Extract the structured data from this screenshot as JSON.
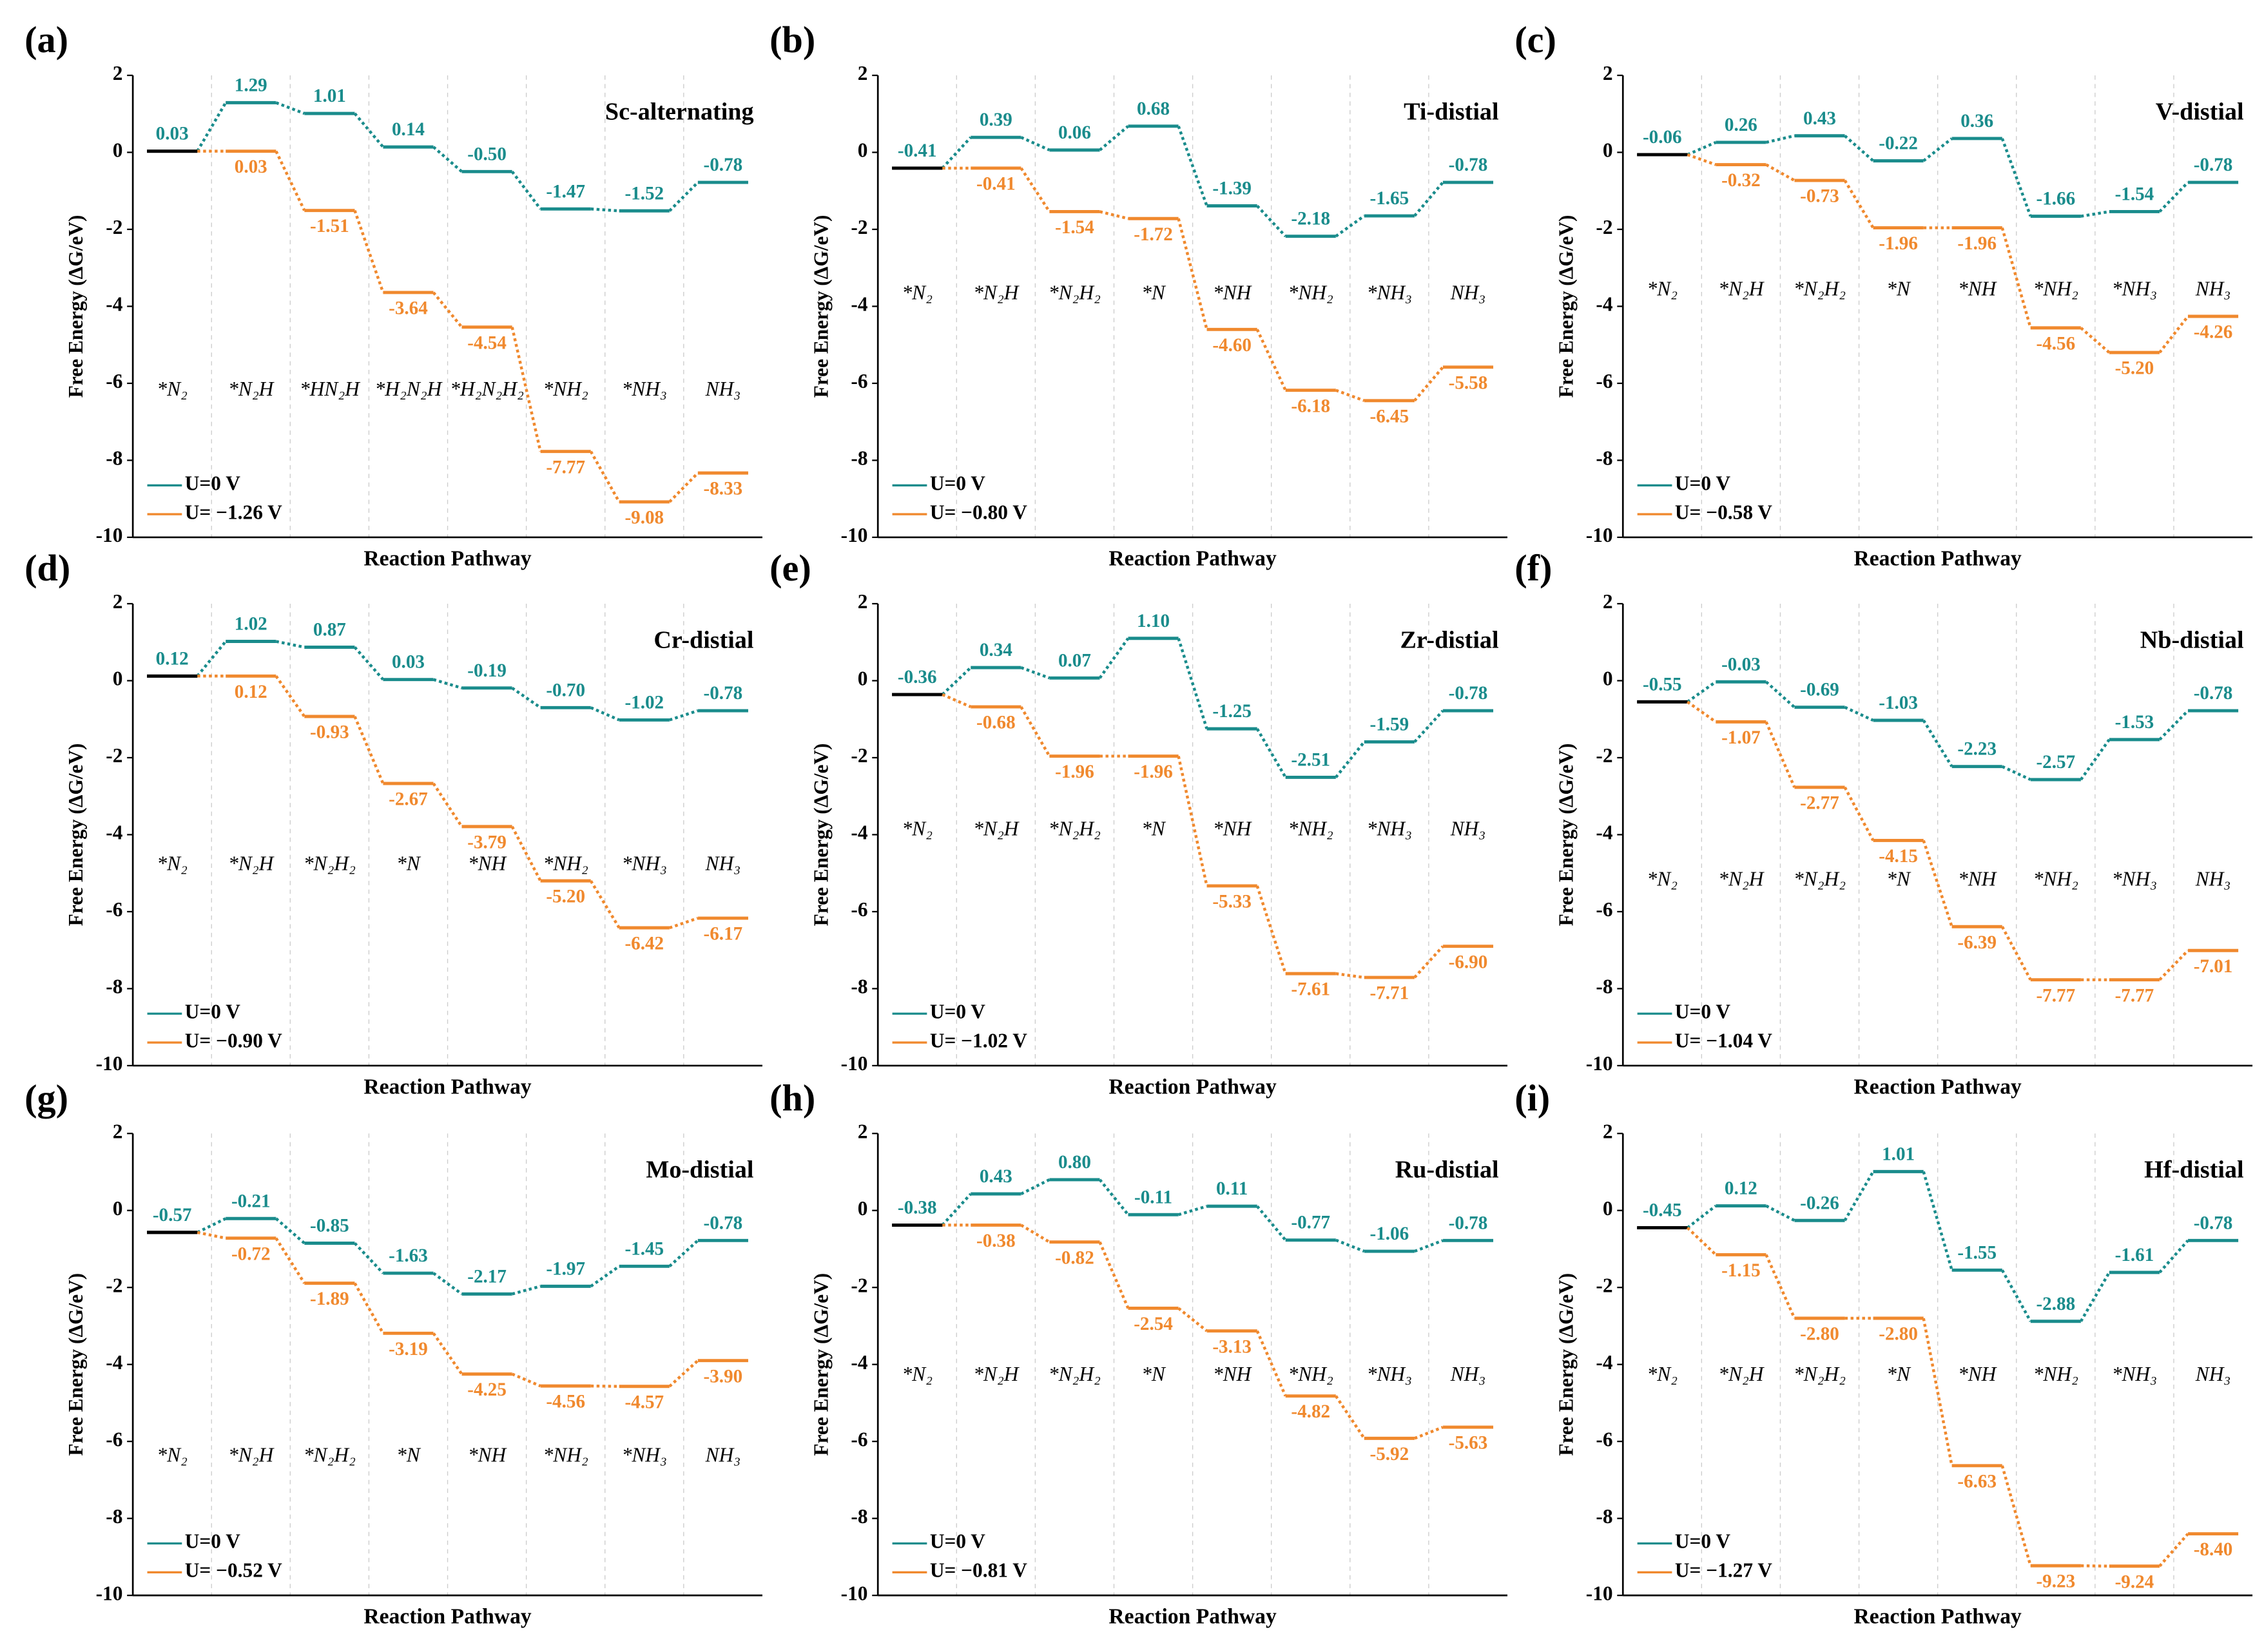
{
  "chart_data": [
    {
      "type": "step",
      "panel": "(a)",
      "title": "Sc-alternating",
      "xlabel": "Reaction Pathway",
      "ylabel": "Free Energy (ΔG/eV)",
      "ylim": [
        -10,
        2
      ],
      "yticks": [
        -10,
        -8,
        -6,
        -4,
        -2,
        0,
        2
      ],
      "categories": [
        "*N₂",
        "*N₂H",
        "*HN₂H",
        "*H₂N₂H",
        "*H₂N₂H₂",
        "*NH₂",
        "*NH₃",
        "NH₃"
      ],
      "series": [
        {
          "name": "U=0 V",
          "color": "#1a8c8c",
          "values": [
            0.03,
            1.29,
            1.01,
            0.14,
            -0.5,
            -1.47,
            -1.52,
            -0.78
          ],
          "value_labels": [
            "0.03",
            "1.29",
            "1.01",
            "0.14",
            "-0.50",
            "-1.47",
            "-1.52",
            "-0.78"
          ]
        },
        {
          "name": "U= −1.26 V",
          "color": "#f0892e",
          "values": [
            0.03,
            0.03,
            -1.51,
            -3.64,
            -4.54,
            -7.77,
            -9.08,
            -8.33
          ],
          "value_labels": [
            null,
            "0.03",
            "-1.51",
            "-3.64",
            "-4.54",
            "-7.77",
            "-9.08",
            "-8.33"
          ]
        }
      ]
    },
    {
      "type": "step",
      "panel": "(b)",
      "title": "Ti-distial",
      "xlabel": "Reaction Pathway",
      "ylabel": "Free Energy (ΔG/eV)",
      "ylim": [
        -10,
        2
      ],
      "yticks": [
        -10,
        -8,
        -6,
        -4,
        -2,
        0,
        2
      ],
      "categories": [
        "*N₂",
        "*N₂H",
        "*N₂H₂",
        "*N",
        "*NH",
        "*NH₂",
        "*NH₃",
        "NH₃"
      ],
      "series": [
        {
          "name": "U=0 V",
          "color": "#1a8c8c",
          "values": [
            -0.41,
            0.39,
            0.06,
            0.68,
            -1.39,
            -2.18,
            -1.65,
            -0.78
          ],
          "value_labels": [
            "-0.41",
            "0.39",
            "0.06",
            "0.68",
            "-1.39",
            "-2.18",
            "-1.65",
            "-0.78"
          ]
        },
        {
          "name": "U= −0.80 V",
          "color": "#f0892e",
          "values": [
            -0.41,
            -0.41,
            -1.54,
            -1.72,
            -4.6,
            -6.18,
            -6.45,
            -5.58
          ],
          "value_labels": [
            null,
            "-0.41",
            "-1.54",
            "-1.72",
            "-4.60",
            "-6.18",
            "-6.45",
            "-5.58"
          ]
        }
      ]
    },
    {
      "type": "step",
      "panel": "(c)",
      "title": "V-distial",
      "xlabel": "Reaction Pathway",
      "ylabel": "Free Energy (ΔG/eV)",
      "ylim": [
        -10,
        2
      ],
      "yticks": [
        -10,
        -8,
        -6,
        -4,
        -2,
        0,
        2
      ],
      "categories": [
        "*N₂",
        "*N₂H",
        "*N₂H₂",
        "*N",
        "*NH",
        "*NH₂",
        "*NH₃",
        "NH₃"
      ],
      "series": [
        {
          "name": "U=0 V",
          "color": "#1a8c8c",
          "values": [
            -0.06,
            0.26,
            0.43,
            -0.22,
            0.36,
            -1.66,
            -1.54,
            -0.78
          ],
          "value_labels": [
            "-0.06",
            "0.26",
            "0.43",
            "-0.22",
            "0.36",
            "-1.66",
            "-1.54",
            "-0.78"
          ]
        },
        {
          "name": "U= −0.58 V",
          "color": "#f0892e",
          "values": [
            -0.06,
            -0.32,
            -0.73,
            -1.96,
            -1.96,
            -4.56,
            -5.2,
            -4.26
          ],
          "value_labels": [
            null,
            "-0.32",
            "-0.73",
            "-1.96",
            "-1.96",
            "-4.56",
            "-5.20",
            "-4.26"
          ]
        }
      ]
    },
    {
      "type": "step",
      "panel": "(d)",
      "title": "Cr-distial",
      "xlabel": "Reaction Pathway",
      "ylabel": "Free Energy (ΔG/eV)",
      "ylim": [
        -10,
        2
      ],
      "yticks": [
        -10,
        -8,
        -6,
        -4,
        -2,
        0,
        2
      ],
      "categories": [
        "*N₂",
        "*N₂H",
        "*N₂H₂",
        "*N",
        "*NH",
        "*NH₂",
        "*NH₃",
        "NH₃"
      ],
      "series": [
        {
          "name": "U=0 V",
          "color": "#1a8c8c",
          "values": [
            0.12,
            1.02,
            0.87,
            0.03,
            -0.19,
            -0.7,
            -1.02,
            -0.78
          ],
          "value_labels": [
            "0.12",
            "1.02",
            "0.87",
            "0.03",
            "-0.19",
            "-0.70",
            "-1.02",
            "-0.78"
          ]
        },
        {
          "name": "U= −0.90 V",
          "color": "#f0892e",
          "values": [
            0.12,
            0.12,
            -0.93,
            -2.67,
            -3.79,
            -5.2,
            -6.42,
            -6.17
          ],
          "value_labels": [
            null,
            "0.12",
            "-0.93",
            "-2.67",
            "-3.79",
            "-5.20",
            "-6.42",
            "-6.17"
          ]
        }
      ]
    },
    {
      "type": "step",
      "panel": "(e)",
      "title": "Zr-distial",
      "xlabel": "Reaction Pathway",
      "ylabel": "Free Energy (ΔG/eV)",
      "ylim": [
        -10,
        2
      ],
      "yticks": [
        -10,
        -8,
        -6,
        -4,
        -2,
        0,
        2
      ],
      "categories": [
        "*N₂",
        "*N₂H",
        "*N₂H₂",
        "*N",
        "*NH",
        "*NH₂",
        "*NH₃",
        "NH₃"
      ],
      "series": [
        {
          "name": "U=0 V",
          "color": "#1a8c8c",
          "values": [
            -0.36,
            0.34,
            0.07,
            1.1,
            -1.25,
            -2.51,
            -1.59,
            -0.78
          ],
          "value_labels": [
            "-0.36",
            "0.34",
            "0.07",
            "1.10",
            "-1.25",
            "-2.51",
            "-1.59",
            "-0.78"
          ]
        },
        {
          "name": "U= −1.02 V",
          "color": "#f0892e",
          "values": [
            -0.36,
            -0.68,
            -1.96,
            -1.96,
            -5.33,
            -7.61,
            -7.71,
            -6.9
          ],
          "value_labels": [
            null,
            "-0.68",
            "-1.96",
            "-1.96",
            "-5.33",
            "-7.61",
            "-7.71",
            "-6.90"
          ]
        }
      ]
    },
    {
      "type": "step",
      "panel": "(f)",
      "title": "Nb-distial",
      "xlabel": "Reaction Pathway",
      "ylabel": "Free Energy (ΔG/eV)",
      "ylim": [
        -10,
        2
      ],
      "yticks": [
        -10,
        -8,
        -6,
        -4,
        -2,
        0,
        2
      ],
      "categories": [
        "*N₂",
        "*N₂H",
        "*N₂H₂",
        "*N",
        "*NH",
        "*NH₂",
        "*NH₃",
        "NH₃"
      ],
      "series": [
        {
          "name": "U=0 V",
          "color": "#1a8c8c",
          "values": [
            -0.55,
            -0.03,
            -0.69,
            -1.03,
            -2.23,
            -2.57,
            -1.53,
            -0.78
          ],
          "value_labels": [
            "-0.55",
            "-0.03",
            "-0.69",
            "-1.03",
            "-2.23",
            "-2.57",
            "-1.53",
            "-0.78"
          ]
        },
        {
          "name": "U= −1.04 V",
          "color": "#f0892e",
          "values": [
            -0.55,
            -1.07,
            -2.77,
            -4.15,
            -6.39,
            -7.77,
            -7.77,
            -7.01
          ],
          "value_labels": [
            null,
            "-1.07",
            "-2.77",
            "-4.15",
            "-6.39",
            "-7.77",
            "-7.77",
            "-7.01"
          ]
        }
      ]
    },
    {
      "type": "step",
      "panel": "(g)",
      "title": "Mo-distial",
      "xlabel": "Reaction Pathway",
      "ylabel": "Free Energy (ΔG/eV)",
      "ylim": [
        -10,
        2
      ],
      "yticks": [
        -10,
        -8,
        -6,
        -4,
        -2,
        0,
        2
      ],
      "categories": [
        "*N₂",
        "*N₂H",
        "*N₂H₂",
        "*N",
        "*NH",
        "*NH₂",
        "*NH₃",
        "NH₃"
      ],
      "series": [
        {
          "name": "U=0 V",
          "color": "#1a8c8c",
          "values": [
            -0.57,
            -0.21,
            -0.85,
            -1.63,
            -2.17,
            -1.97,
            -1.45,
            -0.78
          ],
          "value_labels": [
            "-0.57",
            "-0.21",
            "-0.85",
            "-1.63",
            "-2.17",
            "-1.97",
            "-1.45",
            "-0.78"
          ]
        },
        {
          "name": "U= −0.52 V",
          "color": "#f0892e",
          "values": [
            -0.57,
            -0.72,
            -1.89,
            -3.19,
            -4.25,
            -4.56,
            -4.57,
            -3.9
          ],
          "value_labels": [
            null,
            "-0.72",
            "-1.89",
            "-3.19",
            "-4.25",
            "-4.56",
            "-4.57",
            "-3.90"
          ]
        }
      ]
    },
    {
      "type": "step",
      "panel": "(h)",
      "title": "Ru-distial",
      "xlabel": "Reaction Pathway",
      "ylabel": "Free Energy (ΔG/eV)",
      "ylim": [
        -10,
        2
      ],
      "yticks": [
        -10,
        -8,
        -6,
        -4,
        -2,
        0,
        2
      ],
      "categories": [
        "*N₂",
        "*N₂H",
        "*N₂H₂",
        "*N",
        "*NH",
        "*NH₂",
        "*NH₃",
        "NH₃"
      ],
      "series": [
        {
          "name": "U=0 V",
          "color": "#1a8c8c",
          "values": [
            -0.38,
            0.43,
            0.8,
            -0.11,
            0.11,
            -0.77,
            -1.06,
            -0.78
          ],
          "value_labels": [
            "-0.38",
            "0.43",
            "0.80",
            "-0.11",
            "0.11",
            "-0.77",
            "-1.06",
            "-0.78"
          ]
        },
        {
          "name": "U= −0.81 V",
          "color": "#f0892e",
          "values": [
            -0.38,
            -0.38,
            -0.82,
            -2.54,
            -3.13,
            -4.82,
            -5.92,
            -5.63
          ],
          "value_labels": [
            null,
            "-0.38",
            "-0.82",
            "-2.54",
            "-3.13",
            "-4.82",
            "-5.92",
            "-5.63"
          ]
        }
      ]
    },
    {
      "type": "step",
      "panel": "(i)",
      "title": "Hf-distial",
      "xlabel": "Reaction Pathway",
      "ylabel": "Free Energy (ΔG/eV)",
      "ylim": [
        -10,
        2
      ],
      "yticks": [
        -10,
        -8,
        -6,
        -4,
        -2,
        0,
        2
      ],
      "categories": [
        "*N₂",
        "*N₂H",
        "*N₂H₂",
        "*N",
        "*NH",
        "*NH₂",
        "*NH₃",
        "NH₃"
      ],
      "series": [
        {
          "name": "U=0 V",
          "color": "#1a8c8c",
          "values": [
            -0.45,
            0.12,
            -0.26,
            1.01,
            -1.55,
            -2.88,
            -1.61,
            -0.78
          ],
          "value_labels": [
            "-0.45",
            "0.12",
            "-0.26",
            "1.01",
            "-1.55",
            "-2.88",
            "-1.61",
            "-0.78"
          ]
        },
        {
          "name": "U= −1.27 V",
          "color": "#f0892e",
          "values": [
            -0.45,
            -1.15,
            -2.8,
            -2.8,
            -6.63,
            -9.23,
            -9.24,
            -8.4
          ],
          "value_labels": [
            null,
            "-1.15",
            "-2.80",
            "-2.80",
            "-6.63",
            "-9.23",
            "-9.24",
            "-8.40"
          ]
        }
      ]
    }
  ]
}
